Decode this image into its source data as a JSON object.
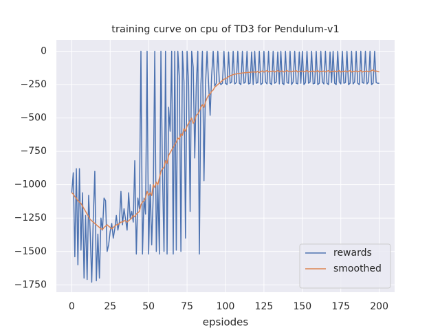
{
  "chart_data": {
    "type": "line",
    "title": "training curve on cpu of TD3 for Pendulum-v1",
    "x_label": "epsiodes",
    "x": [
      0,
      1,
      2,
      3,
      4,
      5,
      6,
      7,
      8,
      9,
      10,
      11,
      12,
      13,
      14,
      15,
      16,
      17,
      18,
      19,
      20,
      21,
      22,
      23,
      24,
      25,
      26,
      27,
      28,
      29,
      30,
      31,
      32,
      33,
      34,
      35,
      36,
      37,
      38,
      39,
      40,
      41,
      42,
      43,
      44,
      45,
      46,
      47,
      48,
      49,
      50,
      51,
      52,
      53,
      54,
      55,
      56,
      57,
      58,
      59,
      60,
      61,
      62,
      63,
      64,
      65,
      66,
      67,
      68,
      69,
      70,
      71,
      72,
      73,
      74,
      75,
      76,
      77,
      78,
      79,
      80,
      81,
      82,
      83,
      84,
      85,
      86,
      87,
      88,
      89,
      90,
      91,
      92,
      93,
      94,
      95,
      96,
      97,
      98,
      99,
      100,
      101,
      102,
      103,
      104,
      105,
      106,
      107,
      108,
      109,
      110,
      111,
      112,
      113,
      114,
      115,
      116,
      117,
      118,
      119,
      120,
      121,
      122,
      123,
      124,
      125,
      126,
      127,
      128,
      129,
      130,
      131,
      132,
      133,
      134,
      135,
      136,
      137,
      138,
      139,
      140,
      141,
      142,
      143,
      144,
      145,
      146,
      147,
      148,
      149,
      150,
      151,
      152,
      153,
      154,
      155,
      156,
      157,
      158,
      159,
      160,
      161,
      162,
      163,
      164,
      165,
      166,
      167,
      168,
      169,
      170,
      171,
      172,
      173,
      174,
      175,
      176,
      177,
      178,
      179,
      180,
      181,
      182,
      183,
      184,
      185,
      186,
      187,
      188,
      189,
      190,
      191,
      192,
      193,
      194,
      195,
      196,
      197,
      198,
      199,
      200
    ],
    "series": [
      {
        "name": "rewards",
        "color": "#4c72b0",
        "values": [
          -1060,
          -910,
          -1540,
          -880,
          -1600,
          -880,
          -1490,
          -1060,
          -1700,
          -1230,
          -1710,
          -1080,
          -1360,
          -1730,
          -1250,
          -900,
          -1720,
          -1370,
          -1700,
          -1250,
          -1340,
          -1100,
          -1120,
          -1500,
          -1450,
          -1350,
          -1290,
          -1400,
          -1330,
          -1230,
          -1340,
          -1280,
          -1050,
          -1300,
          -1180,
          -1260,
          -1340,
          -1060,
          -1250,
          -1200,
          -1280,
          -820,
          -1520,
          -1100,
          -1180,
          0,
          -1520,
          -1100,
          -1220,
          0,
          -1520,
          -1000,
          -1450,
          -1080,
          0,
          -1500,
          -1000,
          -1520,
          0,
          -900,
          -1500,
          0,
          -1520,
          -420,
          -600,
          0,
          -1520,
          0,
          -1490,
          0,
          -200,
          -1500,
          0,
          -230,
          -1400,
          0,
          -250,
          -1200,
          0,
          -120,
          -800,
          -250,
          0,
          -1520,
          -250,
          0,
          -970,
          -250,
          0,
          -240,
          -480,
          -180,
          0,
          -260,
          -240,
          0,
          -230,
          -250,
          -240,
          0,
          -240,
          -250,
          -5,
          -240,
          -230,
          0,
          -245,
          -235,
          0,
          -240,
          -250,
          0,
          -240,
          -230,
          0,
          -245,
          -240,
          -5,
          -250,
          0,
          -240,
          -235,
          0,
          -250,
          -240,
          0,
          -230,
          -245,
          0,
          -240,
          -250,
          0,
          -240,
          -230,
          -5,
          -245,
          0,
          -240,
          -250,
          0,
          -235,
          -240,
          0,
          -250,
          -230,
          0,
          -240,
          -245,
          -5,
          -240,
          0,
          -250,
          -235,
          0,
          -240,
          -230,
          0,
          -245,
          -240,
          0,
          -250,
          -240,
          0,
          -230,
          -245,
          0,
          -240,
          -250,
          -5,
          -235,
          0,
          -240,
          -250,
          0,
          -230,
          -245,
          0,
          -240,
          -235,
          0,
          -250,
          -240,
          0,
          -245,
          -230,
          0,
          -240,
          -250,
          0,
          -235,
          -240,
          0,
          -245,
          -230,
          0,
          -250,
          -240,
          0,
          -235,
          -240,
          -240
        ]
      },
      {
        "name": "smoothed",
        "color": "#dd8452",
        "values": [
          -1060,
          -1070,
          -1090,
          -1100,
          -1120,
          -1130,
          -1140,
          -1160,
          -1180,
          -1200,
          -1220,
          -1240,
          -1260,
          -1270,
          -1280,
          -1290,
          -1300,
          -1310,
          -1320,
          -1330,
          -1335,
          -1320,
          -1310,
          -1300,
          -1310,
          -1320,
          -1330,
          -1320,
          -1310,
          -1300,
          -1300,
          -1290,
          -1280,
          -1280,
          -1270,
          -1270,
          -1280,
          -1270,
          -1260,
          -1250,
          -1230,
          -1240,
          -1220,
          -1210,
          -1200,
          -1150,
          -1130,
          -1120,
          -1100,
          -1050,
          -1080,
          -1060,
          -1080,
          -1000,
          -1020,
          -980,
          -1000,
          -950,
          -900,
          -880,
          -870,
          -820,
          -840,
          -780,
          -760,
          -740,
          -720,
          -700,
          -680,
          -650,
          -660,
          -620,
          -630,
          -580,
          -600,
          -560,
          -540,
          -520,
          -500,
          -540,
          -520,
          -480,
          -470,
          -450,
          -420,
          -400,
          -420,
          -380,
          -350,
          -330,
          -320,
          -300,
          -290,
          -270,
          -260,
          -250,
          -240,
          -230,
          -220,
          -210,
          -205,
          -200,
          -190,
          -185,
          -180,
          -175,
          -172,
          -170,
          -168,
          -166,
          -165,
          -163,
          -162,
          -160,
          -160,
          -158,
          -158,
          -156,
          -156,
          -155,
          -158,
          -150,
          -160,
          -152,
          -148,
          -156,
          -150,
          -145,
          -155,
          -150,
          -152,
          -148,
          -156,
          -150,
          -145,
          -155,
          -150,
          -148,
          -156,
          -150,
          -145,
          -152,
          -150,
          -155,
          -148,
          -150,
          -145,
          -156,
          -150,
          -152,
          -148,
          -155,
          -150,
          -145,
          -156,
          -150,
          -152,
          -148,
          -155,
          -150,
          -145,
          -156,
          -150,
          -152,
          -148,
          -155,
          -150,
          -145,
          -156,
          -150,
          -152,
          -148,
          -155,
          -150,
          -145,
          -156,
          -150,
          -152,
          -148,
          -155,
          -150,
          -145,
          -156,
          -150,
          -152,
          -148,
          -155,
          -150,
          -145,
          -156,
          -150,
          -152,
          -148,
          -155,
          -150,
          -145,
          -140,
          -150,
          -148,
          -152,
          -155
        ]
      }
    ],
    "xlim": [
      -10,
      210
    ],
    "xticks": [
      0,
      25,
      50,
      75,
      100,
      125,
      150,
      175,
      200
    ],
    "ylim": [
      -1805,
      85
    ],
    "yticks": [
      {
        "value": -1750,
        "label": "−1750"
      },
      {
        "value": -1500,
        "label": "−1500"
      },
      {
        "value": -1250,
        "label": "−1250"
      },
      {
        "value": -1000,
        "label": "−1000"
      },
      {
        "value": -750,
        "label": "−750"
      },
      {
        "value": -500,
        "label": "−500"
      },
      {
        "value": -250,
        "label": "−250"
      },
      0
    ],
    "grid": true,
    "legend": "lower right"
  }
}
